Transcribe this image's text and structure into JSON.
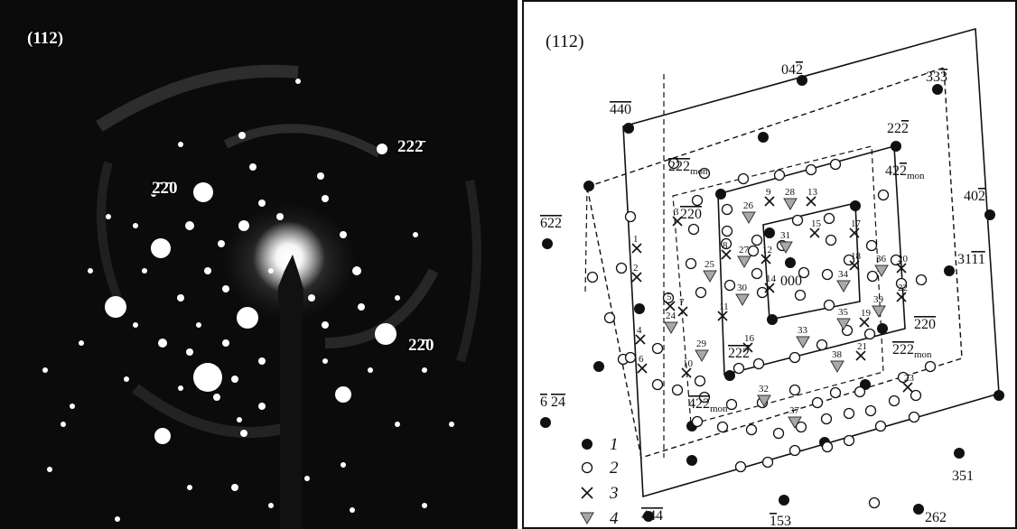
{
  "photo": {
    "title": "(112)",
    "spot_labels": {
      "a": "22̅2̅",
      "b": "̅2̅200",
      "c": "22̅0"
    }
  },
  "scheme": {
    "title": "(112)",
    "labels": {
      "l042": "04",
      "l042b": "2",
      "l333": "33",
      "l333b": "3",
      "l440a": "440",
      "l222": "22",
      "l222b": "2",
      "l222mon": "222",
      "mon": "mon",
      "l422mon": "42",
      "l422monb": "2",
      "l402": "40",
      "l402b": "2",
      "l622": "622",
      "l220": "220",
      "l311": "31",
      "l311b": "1",
      "l311c": "1",
      "l000": "000",
      "l220r": "220",
      "l222m2": "222",
      "l222m3": "222",
      "l624": "6",
      "l624b": "24",
      "l422m": "4",
      "l422mb": "22",
      "l351": "351",
      "l444": "4",
      "l444b": "44",
      "l153": "1",
      "l153b": "53",
      "l262": "262"
    },
    "legend": [
      "1",
      "2",
      "3",
      "4"
    ],
    "numbers": [
      "1",
      "2",
      "3",
      "4",
      "5",
      "6",
      "7",
      "8",
      "9",
      "10",
      "11",
      "12",
      "13",
      "14",
      "15",
      "16",
      "17",
      "18",
      "19",
      "20",
      "21",
      "22",
      "23",
      "24",
      "25",
      "26",
      "27",
      "28",
      "29",
      "30",
      "31",
      "32",
      "33",
      "34",
      "35",
      "36",
      "37",
      "38",
      "39"
    ]
  },
  "colors": {
    "photo_bg": "#0a0a0a",
    "spot": "#ffffff",
    "triangle_fill": "#a8a8a8",
    "line": "#111111"
  }
}
